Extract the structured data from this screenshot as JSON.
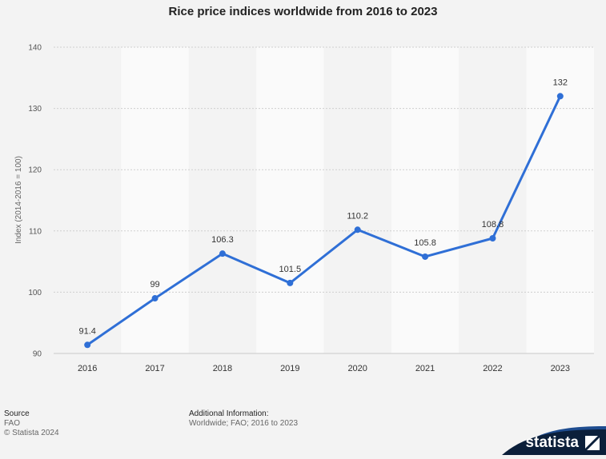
{
  "chart_data": {
    "type": "line",
    "title": "Rice price indices worldwide from 2016 to 2023",
    "ylabel": "Index (2014-2016 = 100)",
    "xlabel": "",
    "ylim": [
      90,
      140
    ],
    "yticks": [
      90,
      100,
      110,
      120,
      130,
      140
    ],
    "categories": [
      "2016",
      "2017",
      "2018",
      "2019",
      "2020",
      "2021",
      "2022",
      "2023"
    ],
    "series": [
      {
        "values": [
          91.4,
          99,
          106.3,
          101.5,
          110.2,
          105.8,
          108.8,
          132
        ]
      }
    ],
    "data_labels": [
      "91.4",
      "99",
      "106.3",
      "101.5",
      "110.2",
      "105.8",
      "108.8",
      "132"
    ],
    "line_color": "#2f6fd6",
    "grid": true,
    "legend": "none"
  },
  "footer": {
    "source_heading": "Source",
    "source_name": "FAO",
    "copyright": "© Statista 2024",
    "additional_heading": "Additional Information:",
    "additional_text": "Worldwide; FAO; 2016 to 2023"
  },
  "brand": {
    "name": "statista",
    "colors": {
      "dark": "#0b1f3a",
      "accent": "#1e4c8f"
    }
  }
}
